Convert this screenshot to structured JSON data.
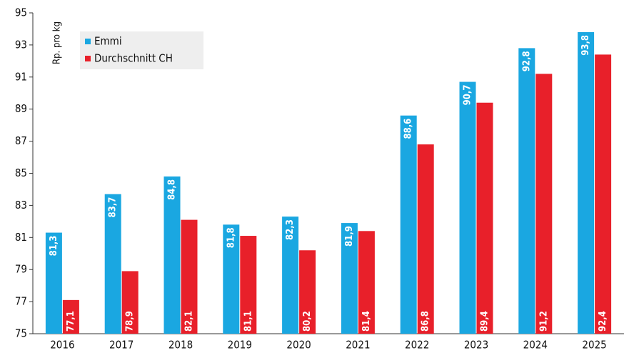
{
  "chart_data": {
    "type": "bar",
    "y_label": "Rp. pro kg",
    "categories": [
      "2016",
      "2017",
      "2018",
      "2019",
      "2020",
      "2021",
      "2022",
      "2023",
      "2024",
      "2025"
    ],
    "series": [
      {
        "name": "Emmi",
        "color": "#1aa7e1",
        "values": [
          81.3,
          83.7,
          84.8,
          81.8,
          82.3,
          81.9,
          88.6,
          90.7,
          92.8,
          93.8
        ],
        "value_labels": [
          "81,3",
          "83,7",
          "84,8",
          "81,8",
          "82,3",
          "81,9",
          "88,6",
          "90,7",
          "92,8",
          "93,8"
        ]
      },
      {
        "name": "Durchschnitt CH",
        "color": "#e8202a",
        "values": [
          77.1,
          78.9,
          82.1,
          81.1,
          80.2,
          81.4,
          86.8,
          89.4,
          91.2,
          92.4
        ],
        "value_labels": [
          "77,1",
          "78,9",
          "82,1",
          "81,1",
          "80,2",
          "81,4",
          "86,8",
          "89,4",
          "91,2",
          "92,4"
        ]
      }
    ],
    "ylim": [
      75,
      95
    ],
    "yticks": [
      75,
      77,
      79,
      81,
      83,
      85,
      87,
      89,
      91,
      93,
      95
    ],
    "grid": false,
    "legend": "top-left"
  }
}
